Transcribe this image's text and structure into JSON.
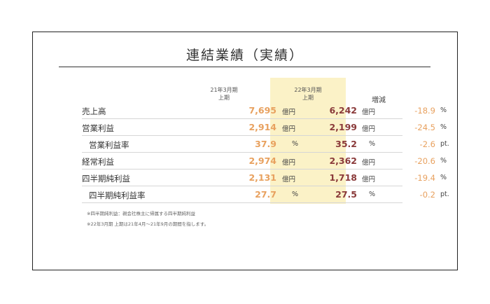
{
  "slide": {
    "title": "連結業績（実績）",
    "headers": {
      "col1_line1": "21年3月期",
      "col1_line2": "上期",
      "col2_line1": "22年3月期",
      "col2_line2": "上期",
      "diff": "増減"
    },
    "rows": [
      {
        "label": "売上高",
        "v1": "7,695",
        "u1": "億円",
        "v2": "6,242",
        "u2": "億円",
        "v3": "-18.9",
        "u3": "%"
      },
      {
        "label": "営業利益",
        "v1": "2,914",
        "u1": "億円",
        "v2": "2,199",
        "u2": "億円",
        "v3": "-24.5",
        "u3": "%"
      },
      {
        "label": "営業利益率",
        "v1": "37.9",
        "u1": "%",
        "v2": "35.2",
        "u2": "%",
        "v3": "-2.6",
        "u3": "pt."
      },
      {
        "label": "経常利益",
        "v1": "2,974",
        "u1": "億円",
        "v2": "2,362",
        "u2": "億円",
        "v3": "-20.6",
        "u3": "%"
      },
      {
        "label": "四半期純利益",
        "v1": "2,131",
        "u1": "億円",
        "v2": "1,718",
        "u2": "億円",
        "v3": "-19.4",
        "u3": "%"
      },
      {
        "label": "四半期純利益率",
        "v1": "27.7",
        "u1": "%",
        "v2": "27.5",
        "u2": "%",
        "v3": "-0.2",
        "u3": "pt."
      }
    ],
    "notes": [
      "※四半期純利益：親会社株主に帰属する四半期純利益",
      "※22年3月期 上期は21年4月～21年9月の期間を指します。"
    ],
    "colors": {
      "prev_value": "#e8a15f",
      "curr_value": "#8a3a3a",
      "highlight": "#fbf2c7"
    }
  }
}
